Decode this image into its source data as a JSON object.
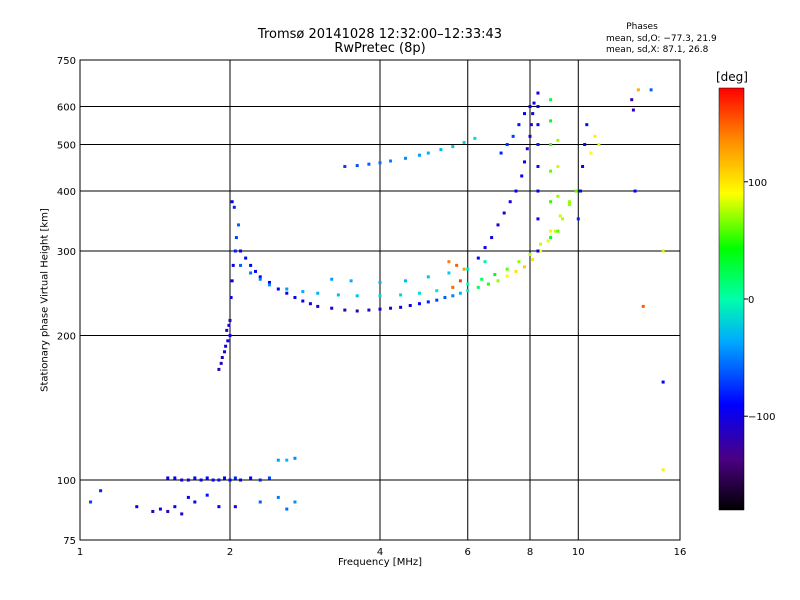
{
  "title": "Tromsø 20141028 12:32:00–12:33:43",
  "subtitle": "RwPretec (8p)",
  "info": {
    "heading": "Phases",
    "o_mode": "mean, sd,O: −77.3, 21.9",
    "x_mode": "mean, sd,X:  87.1, 26.8"
  },
  "colorbar": {
    "unit": "[deg]",
    "range": [
      -180,
      180
    ],
    "ticks": [
      100,
      0,
      -100
    ],
    "tick_labels": [
      "100",
      "0",
      "−100"
    ]
  },
  "chart_data": {
    "type": "scatter",
    "title": "Tromsø 20141028 12:32:00–12:33:43",
    "subtitle": "RwPretec (8p)",
    "xlabel": "Frequency [MHz]",
    "ylabel": "Stationary phase Virtual Height [km]",
    "x_scale": "log",
    "y_scale": "log",
    "xlim": [
      1,
      16
    ],
    "ylim": [
      75,
      750
    ],
    "x_ticks": [
      1,
      2,
      4,
      6,
      8,
      10,
      16
    ],
    "x_tick_labels": [
      "1",
      "2",
      "4",
      "6",
      "8",
      "10",
      "16"
    ],
    "y_ticks": [
      75,
      100,
      200,
      300,
      400,
      500,
      600,
      750
    ],
    "y_tick_labels": [
      "75",
      "100",
      "200",
      "300",
      "400",
      "500",
      "600",
      "750"
    ],
    "grid": true,
    "color_variable": "phase [deg]",
    "points": [
      [
        1.1,
        95,
        -80
      ],
      [
        1.05,
        90,
        -70
      ],
      [
        1.3,
        88,
        -90
      ],
      [
        1.4,
        86,
        -110
      ],
      [
        1.45,
        87,
        -100
      ],
      [
        1.5,
        86,
        -120
      ],
      [
        1.55,
        88,
        -95
      ],
      [
        1.6,
        85,
        -110
      ],
      [
        1.5,
        101,
        -100
      ],
      [
        1.55,
        101,
        -90
      ],
      [
        1.6,
        100,
        -105
      ],
      [
        1.65,
        100,
        -95
      ],
      [
        1.7,
        101,
        -88
      ],
      [
        1.75,
        100,
        -98
      ],
      [
        1.8,
        101,
        -92
      ],
      [
        1.85,
        100,
        -100
      ],
      [
        1.9,
        100,
        -85
      ],
      [
        1.95,
        101,
        -95
      ],
      [
        2.0,
        100,
        -90
      ],
      [
        2.05,
        101,
        -80
      ],
      [
        2.1,
        100,
        -92
      ],
      [
        2.2,
        101,
        -88
      ],
      [
        2.3,
        100,
        -80
      ],
      [
        2.4,
        101,
        -70
      ],
      [
        2.5,
        110,
        -40
      ],
      [
        2.6,
        110,
        -30
      ],
      [
        2.7,
        111,
        -45
      ],
      [
        1.65,
        92,
        -95
      ],
      [
        1.7,
        90,
        -100
      ],
      [
        1.8,
        93,
        -85
      ],
      [
        1.9,
        88,
        -90
      ],
      [
        2.05,
        88,
        -100
      ],
      [
        2.3,
        90,
        -60
      ],
      [
        2.5,
        92,
        -50
      ],
      [
        2.6,
        87,
        -55
      ],
      [
        2.7,
        90,
        -45
      ],
      [
        1.9,
        170,
        -120
      ],
      [
        1.92,
        175,
        -115
      ],
      [
        1.93,
        180,
        -110
      ],
      [
        1.95,
        185,
        -105
      ],
      [
        1.96,
        190,
        -100
      ],
      [
        1.98,
        195,
        -95
      ],
      [
        2.0,
        200,
        -100
      ],
      [
        1.97,
        205,
        -110
      ],
      [
        1.99,
        210,
        -105
      ],
      [
        2.0,
        215,
        -115
      ],
      [
        2.01,
        240,
        -100
      ],
      [
        2.02,
        260,
        -95
      ],
      [
        2.03,
        280,
        -90
      ],
      [
        2.05,
        300,
        -80
      ],
      [
        2.06,
        320,
        -70
      ],
      [
        2.08,
        340,
        -60
      ],
      [
        2.04,
        370,
        -80
      ],
      [
        2.02,
        380,
        -90
      ],
      [
        2.1,
        300,
        -95
      ],
      [
        2.15,
        290,
        -92
      ],
      [
        2.2,
        280,
        -90
      ],
      [
        2.25,
        272,
        -88
      ],
      [
        2.3,
        265,
        -92
      ],
      [
        2.4,
        258,
        -95
      ],
      [
        2.5,
        250,
        -90
      ],
      [
        2.6,
        245,
        -100
      ],
      [
        2.7,
        240,
        -95
      ],
      [
        2.8,
        236,
        -98
      ],
      [
        2.9,
        233,
        -100
      ],
      [
        3.0,
        230,
        -105
      ],
      [
        3.2,
        228,
        -110
      ],
      [
        3.4,
        226,
        -115
      ],
      [
        3.6,
        225,
        -118
      ],
      [
        3.8,
        226,
        -120
      ],
      [
        4.0,
        227,
        -110
      ],
      [
        4.2,
        228,
        -105
      ],
      [
        4.4,
        229,
        -100
      ],
      [
        4.6,
        231,
        -95
      ],
      [
        4.8,
        233,
        -90
      ],
      [
        5.0,
        235,
        -80
      ],
      [
        5.2,
        237,
        -70
      ],
      [
        5.4,
        240,
        -60
      ],
      [
        5.6,
        242,
        -50
      ],
      [
        5.8,
        245,
        -30
      ],
      [
        6.0,
        248,
        -10
      ],
      [
        6.3,
        252,
        20
      ],
      [
        6.6,
        256,
        50
      ],
      [
        6.9,
        260,
        70
      ],
      [
        7.2,
        266,
        90
      ],
      [
        7.5,
        272,
        100
      ],
      [
        7.8,
        278,
        110
      ],
      [
        8.1,
        288,
        100
      ],
      [
        8.4,
        300,
        90
      ],
      [
        8.7,
        315,
        85
      ],
      [
        9.0,
        330,
        80
      ],
      [
        9.3,
        350,
        75
      ],
      [
        9.6,
        375,
        70
      ],
      [
        9.9,
        400,
        60
      ],
      [
        2.1,
        280,
        -60
      ],
      [
        2.2,
        270,
        -55
      ],
      [
        2.3,
        262,
        -50
      ],
      [
        2.4,
        255,
        -45
      ],
      [
        2.6,
        250,
        -40
      ],
      [
        2.8,
        247,
        -35
      ],
      [
        3.0,
        245,
        -30
      ],
      [
        3.3,
        243,
        -28
      ],
      [
        3.6,
        242,
        -25
      ],
      [
        4.0,
        242,
        -20
      ],
      [
        4.4,
        243,
        -18
      ],
      [
        4.8,
        245,
        -15
      ],
      [
        5.2,
        248,
        -10
      ],
      [
        5.6,
        252,
        -5
      ],
      [
        6.0,
        256,
        5
      ],
      [
        6.4,
        262,
        20
      ],
      [
        6.8,
        268,
        40
      ],
      [
        7.2,
        275,
        60
      ],
      [
        7.6,
        285,
        70
      ],
      [
        8.0,
        295,
        75
      ],
      [
        8.4,
        310,
        80
      ],
      [
        8.8,
        330,
        85
      ],
      [
        9.2,
        355,
        80
      ],
      [
        9.6,
        380,
        70
      ],
      [
        3.2,
        262,
        -40
      ],
      [
        3.5,
        260,
        -35
      ],
      [
        4.0,
        258,
        -32
      ],
      [
        4.5,
        260,
        -30
      ],
      [
        5.0,
        265,
        -25
      ],
      [
        5.5,
        270,
        -20
      ],
      [
        6.0,
        275,
        -10
      ],
      [
        6.5,
        285,
        -5
      ],
      [
        5.5,
        285,
        140
      ],
      [
        5.7,
        280,
        150
      ],
      [
        5.9,
        275,
        130
      ],
      [
        5.8,
        260,
        160
      ],
      [
        5.6,
        252,
        145
      ],
      [
        6.3,
        290,
        -90
      ],
      [
        6.5,
        305,
        -95
      ],
      [
        6.7,
        320,
        -100
      ],
      [
        6.9,
        340,
        -105
      ],
      [
        7.1,
        360,
        -110
      ],
      [
        7.3,
        380,
        -100
      ],
      [
        7.5,
        400,
        -95
      ],
      [
        7.7,
        430,
        -90
      ],
      [
        7.8,
        460,
        -95
      ],
      [
        7.9,
        490,
        -100
      ],
      [
        8.0,
        520,
        -105
      ],
      [
        8.05,
        550,
        -110
      ],
      [
        8.1,
        580,
        -100
      ],
      [
        8.15,
        610,
        -95
      ],
      [
        7.0,
        480,
        -80
      ],
      [
        7.2,
        500,
        -75
      ],
      [
        7.4,
        520,
        -70
      ],
      [
        7.6,
        550,
        -85
      ],
      [
        7.8,
        580,
        -90
      ],
      [
        8.0,
        600,
        -95
      ],
      [
        3.4,
        450,
        -70
      ],
      [
        3.6,
        452,
        -65
      ],
      [
        3.8,
        455,
        -60
      ],
      [
        4.0,
        458,
        -55
      ],
      [
        4.2,
        462,
        -50
      ],
      [
        4.5,
        468,
        -45
      ],
      [
        4.8,
        475,
        -40
      ],
      [
        5.0,
        480,
        -35
      ],
      [
        5.3,
        488,
        -30
      ],
      [
        5.6,
        495,
        -25
      ],
      [
        5.9,
        505,
        -20
      ],
      [
        6.2,
        515,
        -15
      ],
      [
        8.3,
        300,
        -100
      ],
      [
        8.3,
        350,
        -95
      ],
      [
        8.3,
        400,
        -90
      ],
      [
        8.3,
        450,
        -85
      ],
      [
        8.3,
        500,
        -80
      ],
      [
        8.3,
        550,
        -90
      ],
      [
        8.3,
        600,
        -95
      ],
      [
        8.3,
        640,
        -100
      ],
      [
        8.8,
        320,
        40
      ],
      [
        8.8,
        380,
        50
      ],
      [
        8.8,
        440,
        60
      ],
      [
        8.8,
        500,
        55
      ],
      [
        8.8,
        560,
        40
      ],
      [
        8.8,
        620,
        30
      ],
      [
        9.1,
        330,
        60
      ],
      [
        9.1,
        390,
        70
      ],
      [
        9.1,
        450,
        80
      ],
      [
        9.1,
        510,
        70
      ],
      [
        10.0,
        350,
        -80
      ],
      [
        10.1,
        400,
        -90
      ],
      [
        10.2,
        450,
        -95
      ],
      [
        10.3,
        500,
        -100
      ],
      [
        10.4,
        550,
        -85
      ],
      [
        10.6,
        480,
        90
      ],
      [
        10.8,
        520,
        95
      ],
      [
        11.0,
        500,
        85
      ],
      [
        12.8,
        620,
        -120
      ],
      [
        12.9,
        590,
        -110
      ],
      [
        13.0,
        400,
        -90
      ],
      [
        13.2,
        650,
        120
      ],
      [
        13.5,
        230,
        150
      ],
      [
        14.0,
        650,
        -60
      ],
      [
        14.8,
        300,
        80
      ],
      [
        14.8,
        160,
        -90
      ],
      [
        14.8,
        105,
        95
      ]
    ]
  }
}
